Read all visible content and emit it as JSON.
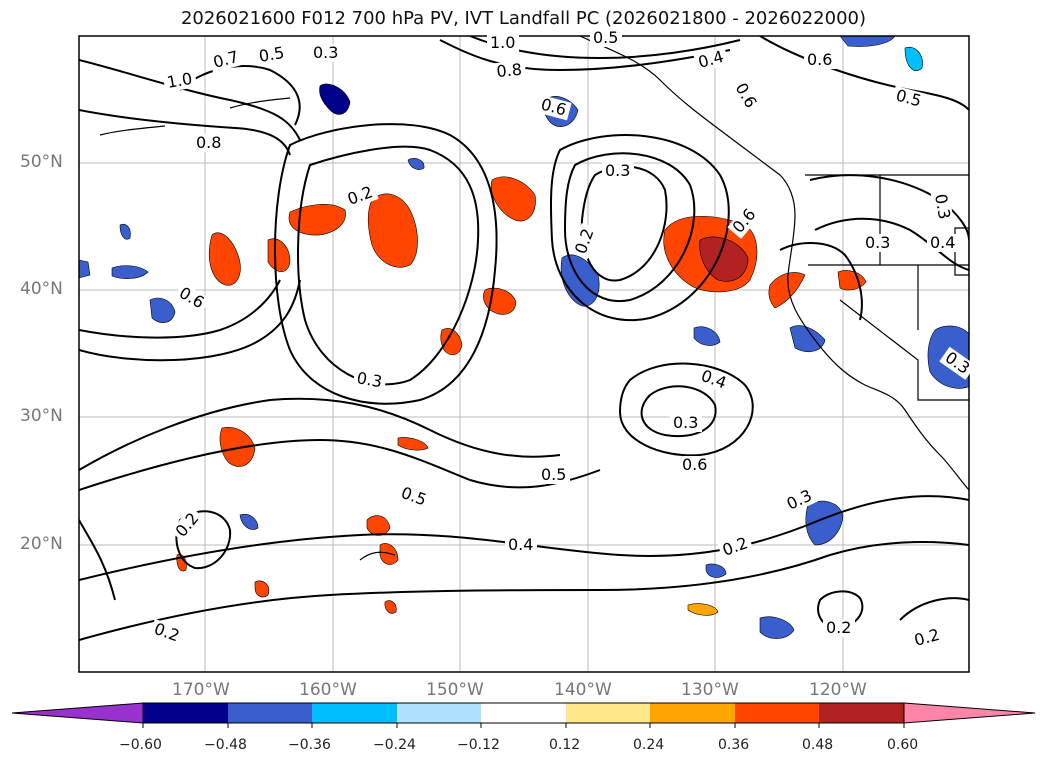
{
  "title": "2026021600 F012 700 hPa PV, IVT Landfall PC (2026021800 - 2026022000)",
  "map": {
    "lat_ticks": [
      "50°N",
      "40°N",
      "30°N",
      "20°N"
    ],
    "lon_ticks": [
      "170°W",
      "160°W",
      "150°W",
      "140°W",
      "130°W",
      "120°W"
    ],
    "contour_labels": [
      "1.0",
      "0.7",
      "0.5",
      "0.3",
      "1.0",
      "0.8",
      "0.6",
      "0.4",
      "0.5",
      "0.6",
      "0.6",
      "0.5",
      "0.8",
      "0.2",
      "0.3",
      "0.2",
      "0.6",
      "0.6",
      "0.3",
      "0.4",
      "0.3",
      "0.3",
      "0.3",
      "0.4",
      "0.3",
      "0.6",
      "0.5",
      "0.5",
      "0.2",
      "0.4",
      "0.3",
      "0.2",
      "0.2",
      "0.2",
      "0.2"
    ]
  },
  "colorbar": {
    "tick_labels": [
      "−0.60",
      "−0.48",
      "−0.36",
      "−0.24",
      "−0.12",
      "0.12",
      "0.24",
      "0.36",
      "0.48",
      "0.60"
    ],
    "colors": [
      "#9932cc",
      "#00008b",
      "#3a5fcd",
      "#00bfff",
      "#b0e2ff",
      "#ffffff",
      "#ffe88a",
      "#ffa500",
      "#ff4500",
      "#b22222",
      "#ff86a8"
    ]
  }
}
